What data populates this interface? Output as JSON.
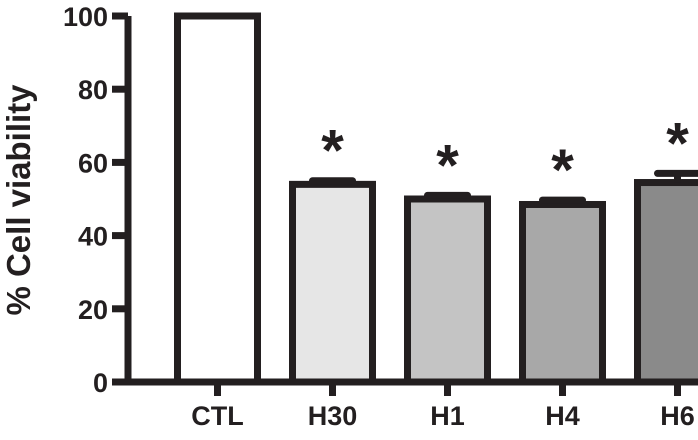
{
  "chart_data": {
    "type": "bar",
    "title": "",
    "xlabel": "",
    "ylabel": "% Cell viability",
    "ylim": [
      0,
      100
    ],
    "yticks": [
      0,
      20,
      40,
      60,
      80,
      100
    ],
    "categories": [
      "CTL",
      "H30",
      "H1",
      "H4",
      "H6"
    ],
    "values": [
      100,
      54,
      50,
      48.5,
      54.5
    ],
    "errors": [
      0,
      1,
      1,
      1.2,
      2.5
    ],
    "significance": [
      "",
      "*",
      "*",
      "*",
      "*"
    ],
    "bar_colors": [
      "#ffffff",
      "#e6e6e6",
      "#c4c4c4",
      "#a8a8a8",
      "#8a8a8a"
    ],
    "grid": false,
    "legend": "none"
  }
}
